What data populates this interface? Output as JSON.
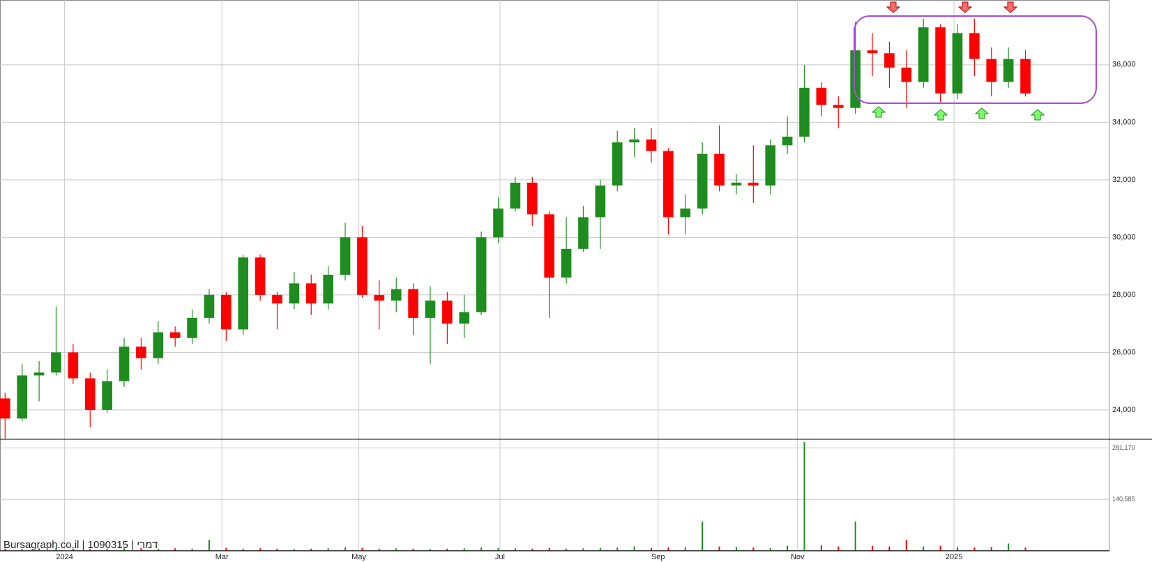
{
  "chart_data": [
    {
      "type": "candlestick",
      "up_color": "#1e8c1e",
      "down_color": "#ff0000",
      "categories": [
        null,
        null,
        null,
        null,
        null,
        null,
        null,
        null,
        null,
        null,
        null,
        null,
        null,
        null,
        null,
        null,
        null,
        null,
        null,
        null,
        null,
        null,
        null,
        null,
        null,
        null,
        null,
        null,
        null,
        null,
        null,
        null,
        null,
        null,
        null,
        null,
        null,
        null,
        null,
        null,
        null,
        null,
        null,
        null,
        null,
        null,
        null,
        null,
        null,
        null,
        null,
        null,
        null,
        null,
        null,
        null,
        null,
        null,
        null,
        null,
        null
      ],
      "open": [
        24400,
        23700,
        25200,
        25300,
        26000,
        25100,
        24000,
        25000,
        26200,
        25800,
        26700,
        26500,
        27200,
        28000,
        26800,
        29300,
        28000,
        27700,
        28400,
        27700,
        28700,
        30000,
        28000,
        27800,
        28200,
        27200,
        27800,
        27000,
        27400,
        30000,
        31000,
        31900,
        30800,
        28600,
        29600,
        30700,
        31800,
        33300,
        33400,
        33000,
        30700,
        31000,
        32900,
        31800,
        31900,
        31800,
        33200,
        33500,
        35200,
        34600,
        34500,
        36500,
        36400,
        35900,
        35400,
        37300,
        35000,
        37100,
        36200,
        35400,
        36200
      ],
      "high": [
        24600,
        25600,
        25700,
        27600,
        26300,
        25300,
        25400,
        26500,
        26500,
        27100,
        26900,
        27500,
        28200,
        28100,
        29400,
        29400,
        28100,
        28800,
        28700,
        29000,
        30500,
        30400,
        28500,
        28600,
        28400,
        28300,
        28100,
        28000,
        30200,
        31400,
        32100,
        32100,
        30900,
        30700,
        31100,
        32000,
        33700,
        33800,
        33800,
        33100,
        31500,
        33300,
        33900,
        32200,
        33200,
        33400,
        34200,
        36000,
        35400,
        34900,
        37500,
        37100,
        36800,
        36500,
        37600,
        37400,
        37400,
        37600,
        36600,
        36600,
        36500
      ],
      "low": [
        23000,
        23600,
        24300,
        25200,
        24900,
        23400,
        23900,
        24800,
        25400,
        25600,
        26200,
        26300,
        27000,
        26400,
        26600,
        27800,
        26800,
        27500,
        27300,
        27500,
        28500,
        27900,
        26800,
        27400,
        26600,
        25600,
        26300,
        26500,
        27300,
        29800,
        30900,
        30400,
        27200,
        28400,
        29500,
        29600,
        31600,
        32800,
        32600,
        30100,
        30100,
        30800,
        31600,
        31500,
        31200,
        31500,
        32900,
        33300,
        34200,
        33800,
        34300,
        35600,
        35200,
        34500,
        35200,
        34700,
        34800,
        35600,
        34900,
        35200,
        34900
      ],
      "close": [
        23700,
        25200,
        25300,
        26000,
        25100,
        24000,
        25000,
        26200,
        25800,
        26700,
        26500,
        27200,
        28000,
        26800,
        29300,
        28000,
        27700,
        28400,
        27700,
        28700,
        30000,
        28000,
        27800,
        28200,
        27200,
        27800,
        27000,
        27400,
        30000,
        31000,
        31900,
        30800,
        28600,
        29600,
        30700,
        31800,
        33300,
        33400,
        33000,
        30700,
        31000,
        32900,
        31800,
        31900,
        31800,
        33200,
        33500,
        35200,
        34600,
        34500,
        36500,
        36400,
        35900,
        35400,
        37300,
        35000,
        37100,
        36200,
        35400,
        36200,
        35000
      ],
      "xlim": [
        -0.3,
        64.9
      ],
      "xticks": [
        {
          "value": 3.5,
          "label": "2024"
        },
        {
          "value": 12.75,
          "label": "Mar"
        },
        {
          "value": 20.8,
          "label": "May"
        },
        {
          "value": 29.1,
          "label": "Jul"
        },
        {
          "value": 38.4,
          "label": "Sep"
        },
        {
          "value": 46.6,
          "label": "Nov"
        },
        {
          "value": 55.8,
          "label": "2025"
        }
      ],
      "ylim": [
        22980,
        38250
      ],
      "yticks": [
        {
          "value": 24000,
          "label": "24,000"
        },
        {
          "value": 26000,
          "label": "26,000"
        },
        {
          "value": 28000,
          "label": "28,000"
        },
        {
          "value": 30000,
          "label": "30,000"
        },
        {
          "value": 32000,
          "label": "32,000"
        },
        {
          "value": 34000,
          "label": "34,000"
        },
        {
          "value": 36000,
          "label": "36,000"
        }
      ],
      "grid": true,
      "source": "Bursagraph.co.il | 1090315 | דמרי"
    },
    {
      "type": "bar",
      "values": [
        6000,
        5000,
        7000,
        9000,
        6000,
        5000,
        6000,
        7000,
        8000,
        6000,
        7000,
        6000,
        30000,
        8000,
        6000,
        7000,
        6000,
        5000,
        6000,
        7000,
        9000,
        8000,
        6000,
        7000,
        6000,
        5000,
        6000,
        7000,
        9000,
        8000,
        7000,
        6000,
        8000,
        6000,
        7000,
        8000,
        9000,
        12000,
        8000,
        9000,
        10000,
        80000,
        12000,
        10000,
        9000,
        8000,
        14000,
        297000,
        15000,
        12000,
        80000,
        14000,
        12000,
        30000,
        12000,
        14000,
        10000,
        9000,
        10000,
        20000,
        9000
      ],
      "ylim": [
        0,
        301000
      ],
      "yticks": [
        {
          "value": 140585,
          "label": "140,585"
        },
        {
          "value": 281170,
          "label": "281,170"
        }
      ]
    }
  ]
}
